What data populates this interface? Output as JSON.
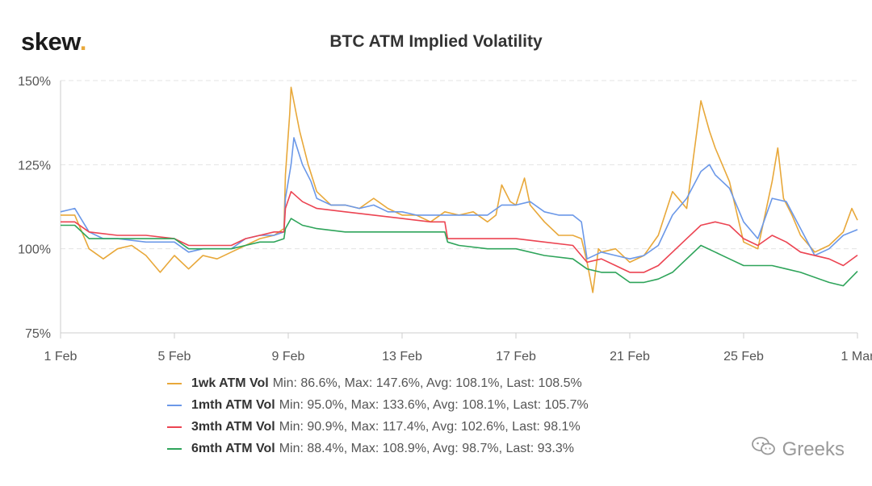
{
  "header": {
    "logo_text": "skew",
    "logo_dot": ".",
    "title": "BTC ATM Implied Volatility"
  },
  "watermark": {
    "text": "Greeks",
    "icon": "wechat-icon"
  },
  "colors": {
    "1wk": "#e8a83a",
    "1mth": "#6b98e8",
    "3mth": "#ec4452",
    "6mth": "#2ea45a",
    "grid": "#e3e3e3"
  },
  "chart_data": {
    "type": "line",
    "title": "BTC ATM Implied Volatility",
    "x_ticks": [
      {
        "day": 1,
        "label": "1 Feb"
      },
      {
        "day": 5,
        "label": "5 Feb"
      },
      {
        "day": 9,
        "label": "9 Feb"
      },
      {
        "day": 13,
        "label": "13 Feb"
      },
      {
        "day": 17,
        "label": "17 Feb"
      },
      {
        "day": 21,
        "label": "21 Feb"
      },
      {
        "day": 25,
        "label": "25 Feb"
      },
      {
        "day": 29,
        "label": "1 Mar"
      }
    ],
    "y_ticks": [
      {
        "value": 75,
        "label": "75%"
      },
      {
        "value": 100,
        "label": "100%"
      },
      {
        "value": 125,
        "label": "125%"
      },
      {
        "value": 150,
        "label": "150%"
      }
    ],
    "xlim": [
      1,
      29
    ],
    "ylim": [
      75,
      150
    ],
    "grid": true,
    "legend_position": "bottom",
    "series": [
      {
        "key": "1wk",
        "name": "1wk ATM Vol",
        "stats": "Min: 86.6%, Max: 147.6%, Avg: 108.1%, Last: 108.5%",
        "points": [
          [
            1,
            110
          ],
          [
            1.5,
            110
          ],
          [
            2,
            100
          ],
          [
            2.5,
            97
          ],
          [
            3,
            100
          ],
          [
            3.5,
            101
          ],
          [
            4,
            98
          ],
          [
            4.5,
            93
          ],
          [
            5,
            98
          ],
          [
            5.5,
            94
          ],
          [
            6,
            98
          ],
          [
            6.5,
            97
          ],
          [
            7,
            99
          ],
          [
            7.5,
            101
          ],
          [
            8,
            103
          ],
          [
            8.5,
            104
          ],
          [
            8.85,
            106
          ],
          [
            8.9,
            122
          ],
          [
            9.05,
            140
          ],
          [
            9.1,
            148
          ],
          [
            9.4,
            135
          ],
          [
            9.7,
            125
          ],
          [
            10,
            117
          ],
          [
            10.5,
            113
          ],
          [
            11,
            113
          ],
          [
            11.5,
            112
          ],
          [
            12,
            115
          ],
          [
            12.5,
            112
          ],
          [
            13,
            110
          ],
          [
            13.5,
            110
          ],
          [
            14,
            108
          ],
          [
            14.5,
            111
          ],
          [
            15,
            110
          ],
          [
            15.5,
            111
          ],
          [
            16,
            108
          ],
          [
            16.3,
            110
          ],
          [
            16.5,
            119
          ],
          [
            16.8,
            114
          ],
          [
            17,
            113
          ],
          [
            17.3,
            121
          ],
          [
            17.5,
            113
          ],
          [
            18,
            108
          ],
          [
            18.5,
            104
          ],
          [
            19,
            104
          ],
          [
            19.3,
            103
          ],
          [
            19.5,
            96
          ],
          [
            19.7,
            87
          ],
          [
            19.9,
            100
          ],
          [
            20,
            99
          ],
          [
            20.5,
            100
          ],
          [
            21,
            96
          ],
          [
            21.5,
            98
          ],
          [
            22,
            104
          ],
          [
            22.5,
            117
          ],
          [
            23,
            112
          ],
          [
            23.5,
            144
          ],
          [
            23.8,
            135
          ],
          [
            24,
            130
          ],
          [
            24.5,
            120
          ],
          [
            25,
            102
          ],
          [
            25.5,
            100
          ],
          [
            26,
            120
          ],
          [
            26.2,
            130
          ],
          [
            26.4,
            115
          ],
          [
            26.7,
            110
          ],
          [
            27,
            104
          ],
          [
            27.5,
            99
          ],
          [
            28,
            101
          ],
          [
            28.5,
            105
          ],
          [
            28.8,
            112
          ],
          [
            29,
            108.5
          ]
        ]
      },
      {
        "key": "1mth",
        "name": "1mth ATM Vol",
        "stats": "Min: 95.0%, Max: 133.6%, Avg: 108.1%, Last: 105.7%",
        "points": [
          [
            1,
            111
          ],
          [
            1.5,
            112
          ],
          [
            2,
            105
          ],
          [
            2.5,
            103
          ],
          [
            3,
            103
          ],
          [
            4,
            102
          ],
          [
            5,
            102
          ],
          [
            5.5,
            99
          ],
          [
            6,
            100
          ],
          [
            6.5,
            100
          ],
          [
            7,
            100
          ],
          [
            7.5,
            103
          ],
          [
            8,
            104
          ],
          [
            8.5,
            104
          ],
          [
            8.85,
            105
          ],
          [
            8.9,
            115
          ],
          [
            9.1,
            125
          ],
          [
            9.2,
            133
          ],
          [
            9.5,
            125
          ],
          [
            9.8,
            120
          ],
          [
            10,
            115
          ],
          [
            10.5,
            113
          ],
          [
            11,
            113
          ],
          [
            11.5,
            112
          ],
          [
            12,
            113
          ],
          [
            12.5,
            111
          ],
          [
            13,
            111
          ],
          [
            13.5,
            110
          ],
          [
            14,
            110
          ],
          [
            14.5,
            110
          ],
          [
            15,
            110
          ],
          [
            15.5,
            110
          ],
          [
            16,
            110
          ],
          [
            16.5,
            113
          ],
          [
            17,
            113
          ],
          [
            17.5,
            114
          ],
          [
            18,
            111
          ],
          [
            18.5,
            110
          ],
          [
            19,
            110
          ],
          [
            19.3,
            108
          ],
          [
            19.5,
            97
          ],
          [
            20,
            99
          ],
          [
            20.5,
            98
          ],
          [
            21,
            97
          ],
          [
            21.5,
            98
          ],
          [
            22,
            101
          ],
          [
            22.5,
            110
          ],
          [
            23,
            115
          ],
          [
            23.5,
            123
          ],
          [
            23.8,
            125
          ],
          [
            24,
            122
          ],
          [
            24.5,
            118
          ],
          [
            25,
            108
          ],
          [
            25.5,
            103
          ],
          [
            26,
            115
          ],
          [
            26.5,
            114
          ],
          [
            27,
            106
          ],
          [
            27.5,
            98
          ],
          [
            28,
            100
          ],
          [
            28.5,
            104
          ],
          [
            29,
            105.7
          ]
        ]
      },
      {
        "key": "3mth",
        "name": "3mth ATM Vol",
        "stats": "Min: 90.9%, Max: 117.4%, Avg: 102.6%, Last: 98.1%",
        "points": [
          [
            1,
            108
          ],
          [
            1.5,
            108
          ],
          [
            2,
            105
          ],
          [
            3,
            104
          ],
          [
            4,
            104
          ],
          [
            5,
            103
          ],
          [
            5.5,
            101
          ],
          [
            6,
            101
          ],
          [
            6.5,
            101
          ],
          [
            7,
            101
          ],
          [
            7.5,
            103
          ],
          [
            8,
            104
          ],
          [
            8.5,
            105
          ],
          [
            8.85,
            105
          ],
          [
            8.9,
            112
          ],
          [
            9.1,
            117
          ],
          [
            9.5,
            114
          ],
          [
            10,
            112
          ],
          [
            11,
            111
          ],
          [
            12,
            110
          ],
          [
            13,
            109
          ],
          [
            14,
            108
          ],
          [
            14.5,
            108
          ],
          [
            14.6,
            103
          ],
          [
            15,
            103
          ],
          [
            16,
            103
          ],
          [
            17,
            103
          ],
          [
            18,
            102
          ],
          [
            19,
            101
          ],
          [
            19.5,
            96
          ],
          [
            20,
            97
          ],
          [
            20.5,
            95
          ],
          [
            21,
            93
          ],
          [
            21.5,
            93
          ],
          [
            22,
            95
          ],
          [
            22.5,
            99
          ],
          [
            23,
            103
          ],
          [
            23.5,
            107
          ],
          [
            24,
            108
          ],
          [
            24.5,
            107
          ],
          [
            25,
            103
          ],
          [
            25.5,
            101
          ],
          [
            26,
            104
          ],
          [
            26.5,
            102
          ],
          [
            27,
            99
          ],
          [
            28,
            97
          ],
          [
            28.5,
            95
          ],
          [
            29,
            98.1
          ]
        ]
      },
      {
        "key": "6mth",
        "name": "6mth ATM Vol",
        "stats": "Min: 88.4%, Max: 108.9%, Avg: 98.7%, Last: 93.3%",
        "points": [
          [
            1,
            107
          ],
          [
            1.5,
            107
          ],
          [
            2,
            103
          ],
          [
            3,
            103
          ],
          [
            4,
            103
          ],
          [
            5,
            103
          ],
          [
            5.5,
            100
          ],
          [
            6,
            100
          ],
          [
            6.5,
            100
          ],
          [
            7,
            100
          ],
          [
            7.5,
            101
          ],
          [
            8,
            102
          ],
          [
            8.5,
            102
          ],
          [
            8.85,
            103
          ],
          [
            8.9,
            106
          ],
          [
            9.1,
            109
          ],
          [
            9.5,
            107
          ],
          [
            10,
            106
          ],
          [
            11,
            105
          ],
          [
            12,
            105
          ],
          [
            13,
            105
          ],
          [
            14,
            105
          ],
          [
            14.5,
            105
          ],
          [
            14.6,
            102
          ],
          [
            15,
            101
          ],
          [
            16,
            100
          ],
          [
            17,
            100
          ],
          [
            18,
            98
          ],
          [
            19,
            97
          ],
          [
            19.5,
            94
          ],
          [
            20,
            93
          ],
          [
            20.5,
            93
          ],
          [
            21,
            90
          ],
          [
            21.5,
            90
          ],
          [
            22,
            91
          ],
          [
            22.5,
            93
          ],
          [
            23,
            97
          ],
          [
            23.5,
            101
          ],
          [
            24,
            99
          ],
          [
            24.5,
            97
          ],
          [
            25,
            95
          ],
          [
            26,
            95
          ],
          [
            26.5,
            94
          ],
          [
            27,
            93
          ],
          [
            28,
            90
          ],
          [
            28.5,
            89
          ],
          [
            29,
            93.3
          ]
        ]
      }
    ]
  }
}
